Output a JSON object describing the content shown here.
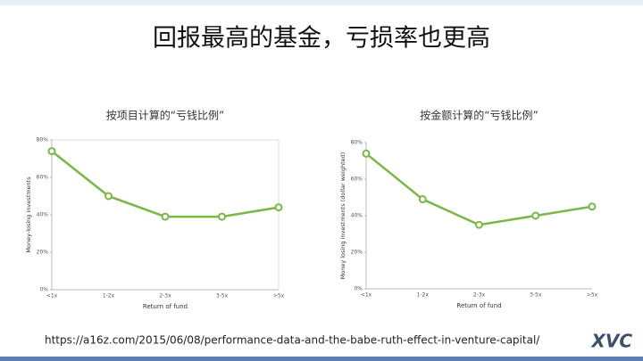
{
  "title": "回报最高的基金，亏损率也更高",
  "source_url": "https://a16z.com/2015/06/08/performance-data-and-the-babe-ruth-effect-in-venture-capital/",
  "logo": "XVC",
  "chart_data": [
    {
      "type": "line",
      "subtitle": "按项目计算的“亏钱比例”",
      "y_label": "Money-losing investments",
      "x_label": "Return of fund",
      "categories": [
        "<1x",
        "1-2x",
        "2-3x",
        "3-5x",
        ">5x"
      ],
      "values": [
        74,
        50,
        39,
        39,
        44
      ],
      "color": "#7ab648",
      "ylim": [
        0,
        80
      ],
      "yticks": [
        {
          "value": 0,
          "label": "0%"
        },
        {
          "value": 20,
          "label": "20%"
        },
        {
          "value": 40,
          "label": "40%"
        },
        {
          "value": 60,
          "label": "60%"
        },
        {
          "value": 80,
          "label": "80%"
        }
      ],
      "grid": false
    },
    {
      "type": "line",
      "subtitle": "按金额计算的“亏钱比例”",
      "y_label": "Money losing investments (dollar weighted)",
      "x_label": "Return of fund",
      "categories": [
        "<1x",
        "1-2x",
        "2-3x",
        "3-5x",
        ">5x"
      ],
      "values": [
        74,
        49,
        35,
        40,
        45
      ],
      "color": "#7ab648",
      "ylim": [
        0,
        80
      ],
      "yticks": [
        {
          "value": 0,
          "label": "0%"
        },
        {
          "value": 20,
          "label": "20%"
        },
        {
          "value": 40,
          "label": "40%"
        },
        {
          "value": 60,
          "label": "60%"
        },
        {
          "value": 80,
          "label": "80%"
        }
      ],
      "grid": false
    }
  ]
}
